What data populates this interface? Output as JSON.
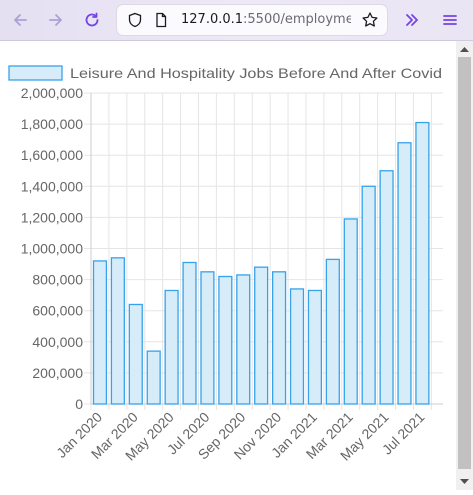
{
  "browser": {
    "url_host": "127.0.0.1",
    "url_rest": ":5500/employment",
    "icons": [
      "back-arrow-icon",
      "forward-arrow-icon",
      "reload-icon",
      "shield-icon",
      "page-icon",
      "star-icon",
      "extensions-chevron-icon",
      "menu-icon"
    ]
  },
  "colors": {
    "bar_fill": "#d7ecf9",
    "bar_stroke": "#36a2eb",
    "grid": "#e5e5e5",
    "axis_text": "#666666",
    "toolbar": "#e9e5f4"
  },
  "chart_data": {
    "type": "bar",
    "legend": "Leisure And Hospitality Jobs Before And After Covid",
    "legend_position": "top",
    "categories": [
      "Jan 2020",
      "Feb 2020",
      "Mar 2020",
      "Apr 2020",
      "May 2020",
      "Jun 2020",
      "Jul 2020",
      "Aug 2020",
      "Sep 2020",
      "Oct 2020",
      "Nov 2020",
      "Dec 2020",
      "Jan 2021",
      "Feb 2021",
      "Mar 2021",
      "Apr 2021",
      "May 2021",
      "Jun 2021",
      "Jul 2021",
      "Aug 2021"
    ],
    "tick_labels": [
      "Jan 2020",
      "Mar 2020",
      "May 2020",
      "Jul 2020",
      "Sep 2020",
      "Nov 2020",
      "Jan 2021",
      "Mar 2021",
      "May 2021",
      "Jul 2021"
    ],
    "values": [
      920000,
      940000,
      640000,
      340000,
      730000,
      910000,
      850000,
      820000,
      830000,
      880000,
      850000,
      740000,
      730000,
      930000,
      1190000,
      1400000,
      1500000,
      1680000,
      1810000,
      null
    ],
    "yticks": [
      "0",
      "200,000",
      "400,000",
      "600,000",
      "800,000",
      "1,000,000",
      "1,200,000",
      "1,400,000",
      "1,600,000",
      "1,800,000",
      "2,000,000"
    ],
    "ylim": [
      0,
      2000000
    ],
    "grid": true
  }
}
